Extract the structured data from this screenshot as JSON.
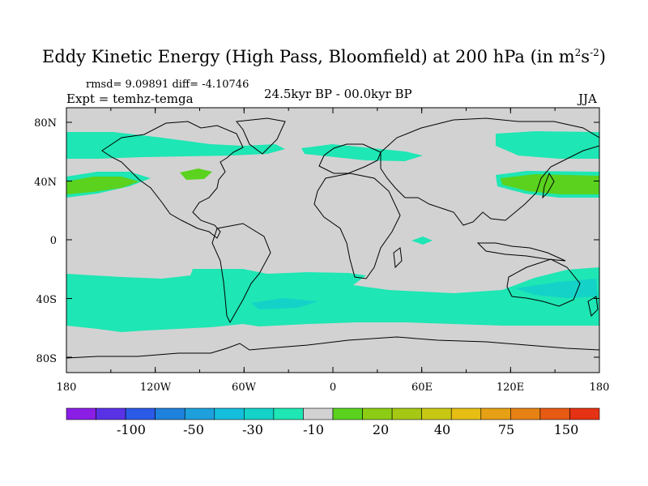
{
  "title": {
    "text": "Eddy Kinetic Energy (High Pass, Bloomfield) at 200 hPa (in m",
    "sup1": "2",
    "mid": "s",
    "sup2": "-2",
    "close": ")"
  },
  "stats": "rmsd= 9.09891 diff= -4.10746",
  "expt": "Expt = temhz-temga",
  "period": "24.5kyr BP - 00.0kyr BP",
  "season": "JJA",
  "axes": {
    "y_labels": [
      "80N",
      "40N",
      "0",
      "40S",
      "80S"
    ],
    "x_labels": [
      "180",
      "120W",
      "60W",
      "0",
      "60E",
      "120E",
      "180"
    ]
  },
  "colorbar": {
    "colors": [
      "#8a1ee6",
      "#5a32e6",
      "#2a5ae6",
      "#1e82dc",
      "#1ea0dc",
      "#14bedc",
      "#14d2c8",
      "#1ee6b4",
      "#d2d2d2",
      "#5ad21e",
      "#8ccd14",
      "#a5c814",
      "#c8c814",
      "#e6be14",
      "#e6a014",
      "#e68214",
      "#e65a14",
      "#e63214"
    ],
    "labels": [
      "-100",
      "-50",
      "-30",
      "-10",
      "20",
      "40",
      "75",
      "150"
    ]
  },
  "map_colors": {
    "ocean_bg": "#d2d2d2",
    "teal": "#1ee6b4",
    "cyan": "#14d2c8",
    "green": "#5ad21e",
    "coast": "#000000"
  }
}
